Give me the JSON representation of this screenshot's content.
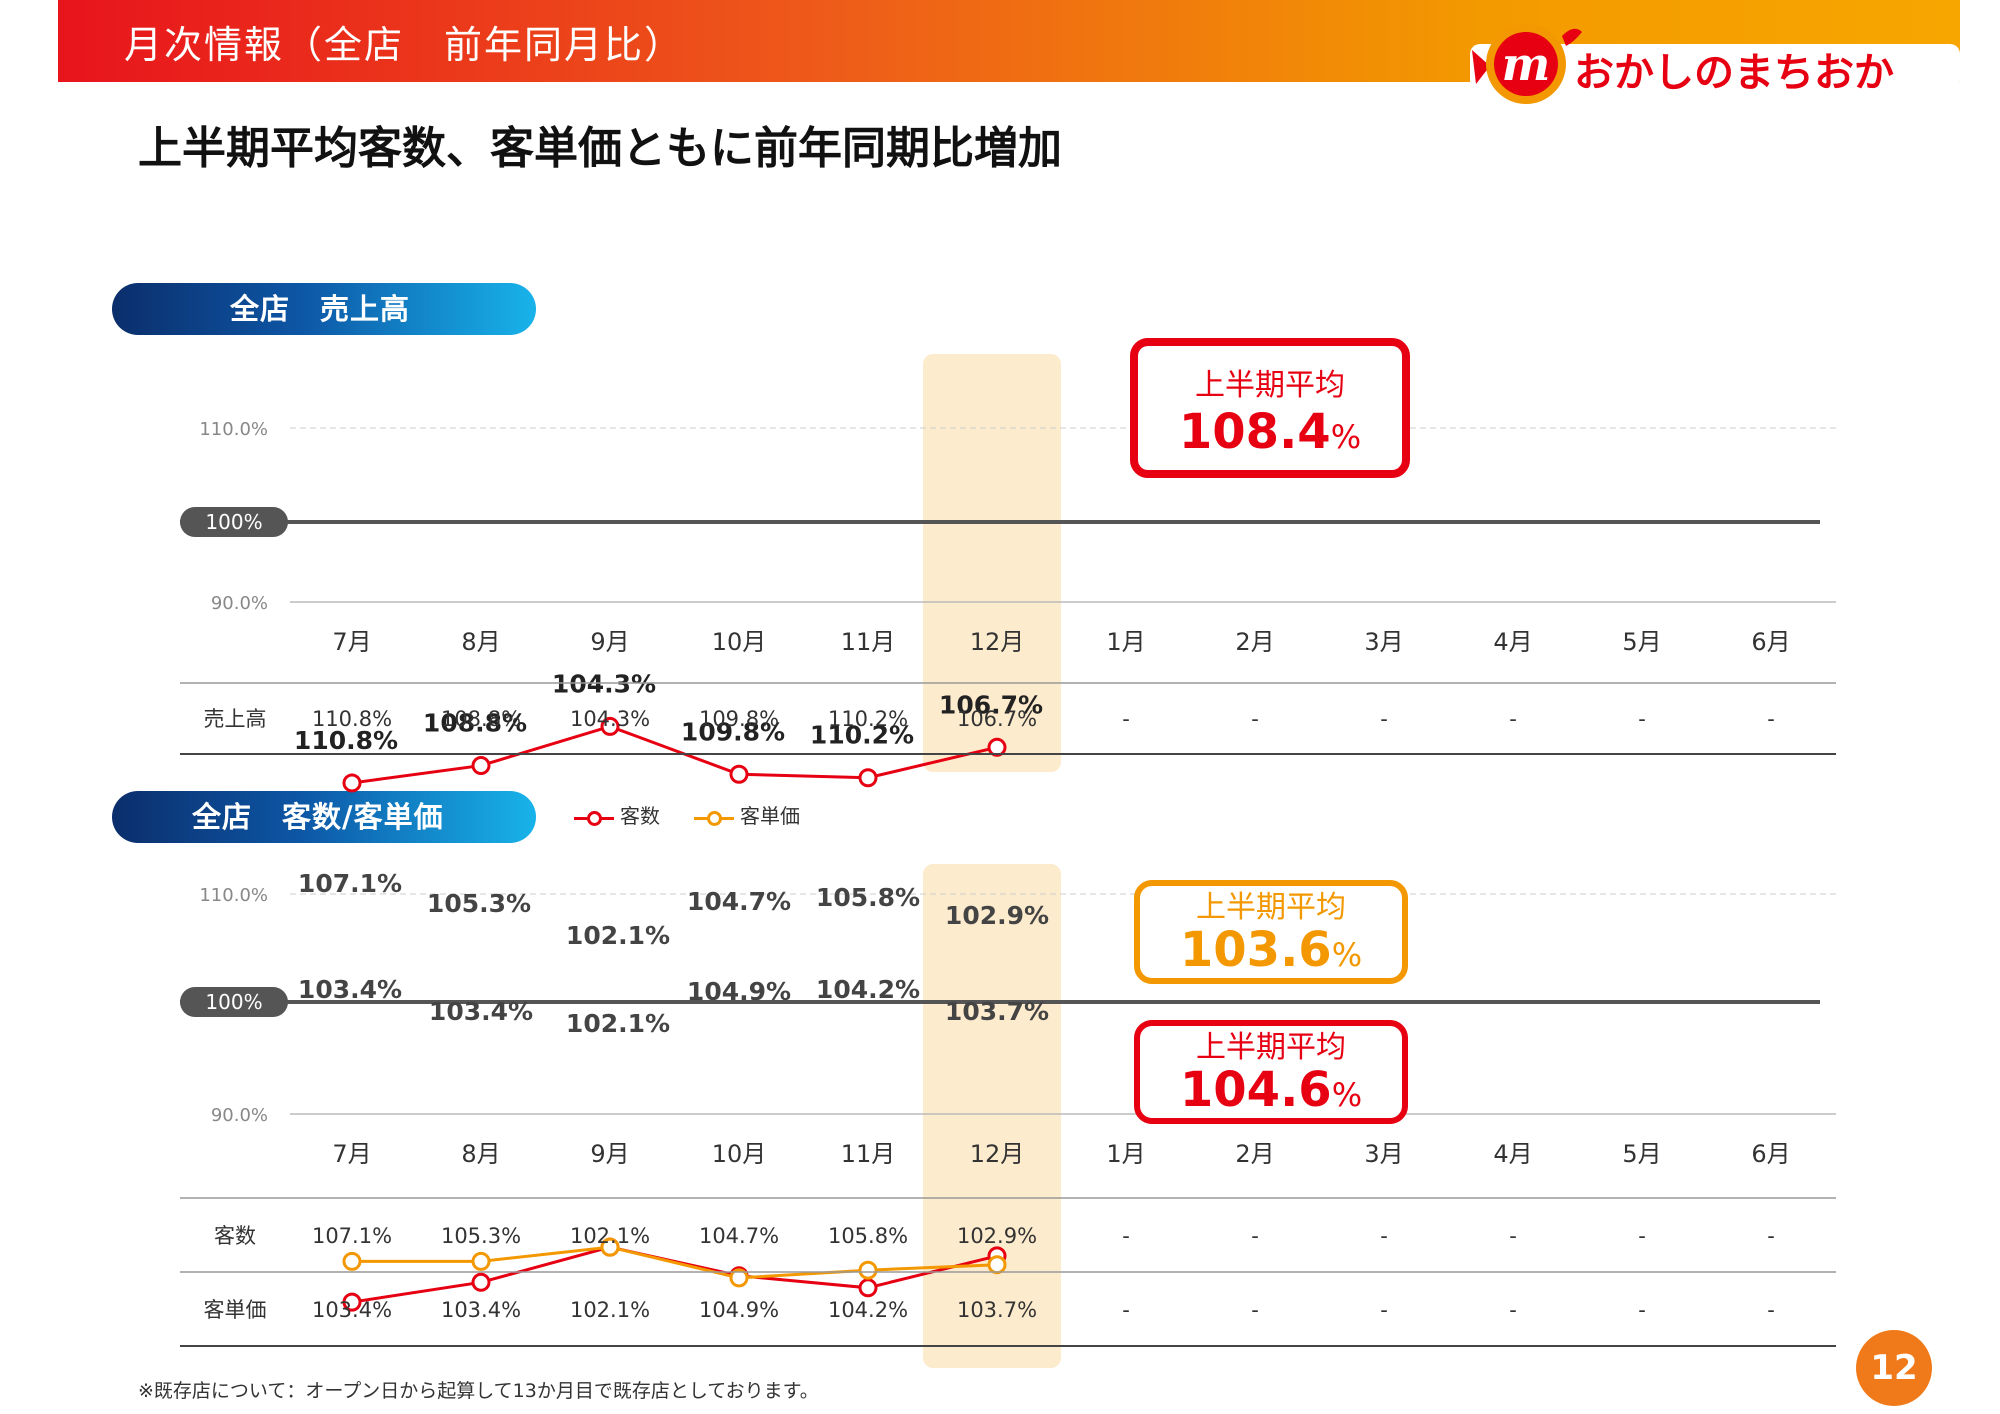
{
  "header": {
    "title": "月次情報（全店　前年同月比）"
  },
  "logo": {
    "text": "おかしのまちおか",
    "mark": "m"
  },
  "subtitle": "上半期平均客数、客単価ともに前年同期比増加",
  "footnote": "※既存店について：オープン日から起算して13か月目で既存店としております。",
  "page_number": "12",
  "colors": {
    "red": "#e60012",
    "orange": "#f39800",
    "baseline": "#555555",
    "highlight": "#fdebcd"
  },
  "sales_section": {
    "pill_label": "全店　売上高",
    "avg": {
      "label": "上半期平均",
      "value": "108.4",
      "unit": "%"
    }
  },
  "customer_section": {
    "pill_label": "全店　客数/客単価",
    "legend": [
      "客数",
      "客単価"
    ],
    "avg_price": {
      "label": "上半期平均",
      "value": "103.6",
      "unit": "%"
    },
    "avg_count": {
      "label": "上半期平均",
      "value": "104.6",
      "unit": "%"
    }
  },
  "chart_data": [
    {
      "type": "line",
      "title": "全店　売上高",
      "categories": [
        "7月",
        "8月",
        "9月",
        "10月",
        "11月",
        "12月",
        "1月",
        "2月",
        "3月",
        "4月",
        "5月",
        "6月"
      ],
      "series": [
        {
          "name": "売上高",
          "values": [
            110.8,
            108.8,
            104.3,
            109.8,
            110.2,
            106.7,
            null,
            null,
            null,
            null,
            null,
            null
          ]
        }
      ],
      "data_labels": [
        "110.8%",
        "108.8%",
        "104.3%",
        "109.8%",
        "110.2%",
        "106.7%"
      ],
      "y_ticks": [
        "110.0%",
        "100%",
        "90.0%"
      ],
      "ylim": [
        90,
        110
      ],
      "highlight_category": "12月",
      "table": {
        "row_label": "売上高",
        "cells": [
          "110.8%",
          "108.8%",
          "104.3%",
          "109.8%",
          "110.2%",
          "106.7%",
          "-",
          "-",
          "-",
          "-",
          "-",
          "-"
        ]
      }
    },
    {
      "type": "line",
      "title": "全店　客数/客単価",
      "categories": [
        "7月",
        "8月",
        "9月",
        "10月",
        "11月",
        "12月",
        "1月",
        "2月",
        "3月",
        "4月",
        "5月",
        "6月"
      ],
      "series": [
        {
          "name": "客数",
          "values": [
            107.1,
            105.3,
            102.1,
            104.7,
            105.8,
            102.9,
            null,
            null,
            null,
            null,
            null,
            null
          ],
          "labels": [
            "107.1%",
            "105.3%",
            "102.1%",
            "104.7%",
            "105.8%",
            "102.9%"
          ]
        },
        {
          "name": "客単価",
          "values": [
            103.4,
            103.4,
            102.1,
            104.9,
            104.2,
            103.7,
            null,
            null,
            null,
            null,
            null,
            null
          ],
          "labels": [
            "103.4%",
            "103.4%",
            "102.1%",
            "104.9%",
            "104.2%",
            "103.7%"
          ]
        }
      ],
      "y_ticks": [
        "110.0%",
        "100%",
        "90.0%"
      ],
      "ylim": [
        90,
        110
      ],
      "highlight_category": "12月",
      "table": [
        {
          "row_label": "客数",
          "cells": [
            "107.1%",
            "105.3%",
            "102.1%",
            "104.7%",
            "105.8%",
            "102.9%",
            "-",
            "-",
            "-",
            "-",
            "-",
            "-"
          ]
        },
        {
          "row_label": "客単価",
          "cells": [
            "103.4%",
            "103.4%",
            "102.1%",
            "104.9%",
            "104.2%",
            "103.7%",
            "-",
            "-",
            "-",
            "-",
            "-",
            "-"
          ]
        }
      ]
    }
  ]
}
